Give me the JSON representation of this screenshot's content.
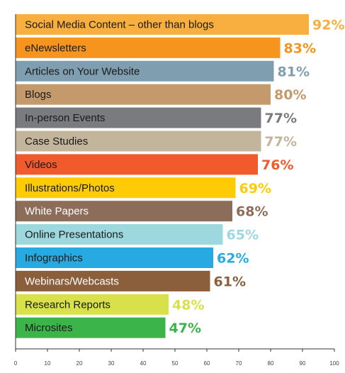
{
  "chart_data": {
    "type": "bar",
    "orientation": "horizontal",
    "categories": [
      "Social Media Content – other than blogs",
      "eNewsletters",
      "Articles on Your Website",
      "Blogs",
      "In-person Events",
      "Case Studies",
      "Videos",
      "Illustrations/Photos",
      "White Papers",
      "Online Presentations",
      "Infographics",
      "Webinars/Webcasts",
      "Research Reports",
      "Microsites"
    ],
    "values": [
      92,
      83,
      81,
      80,
      77,
      77,
      76,
      69,
      68,
      65,
      62,
      61,
      48,
      47
    ],
    "value_labels": [
      "92%",
      "83%",
      "81%",
      "80%",
      "77%",
      "77%",
      "76%",
      "69%",
      "68%",
      "65%",
      "62%",
      "61%",
      "48%",
      "47%"
    ],
    "colors": [
      "#F9AF3F",
      "#F7941D",
      "#7F9FB0",
      "#C49A6C",
      "#7A7B7E",
      "#C3B49C",
      "#F15A2B",
      "#FFCB05",
      "#8C6D5A",
      "#9ED8DF",
      "#27AAE1",
      "#8B5E3C",
      "#D8E04A",
      "#3BB54A"
    ],
    "label_colors": [
      "#1a1a1a",
      "#1a1a1a",
      "#1a1a1a",
      "#1a1a1a",
      "#1a1a1a",
      "#1a1a1a",
      "#1a1a1a",
      "#1a1a1a",
      "#ffffff",
      "#1a1a1a",
      "#1a1a1a",
      "#ffffff",
      "#1a1a1a",
      "#1a1a1a"
    ],
    "xlim": [
      0,
      100
    ],
    "xticks": [
      0,
      10,
      20,
      30,
      40,
      50,
      60,
      70,
      80,
      90,
      100
    ],
    "xtick_labels": [
      "0",
      "10",
      "20",
      "30",
      "40",
      "50",
      "60",
      "70",
      "80",
      "90",
      "100"
    ],
    "grid": false,
    "legend": "none"
  }
}
